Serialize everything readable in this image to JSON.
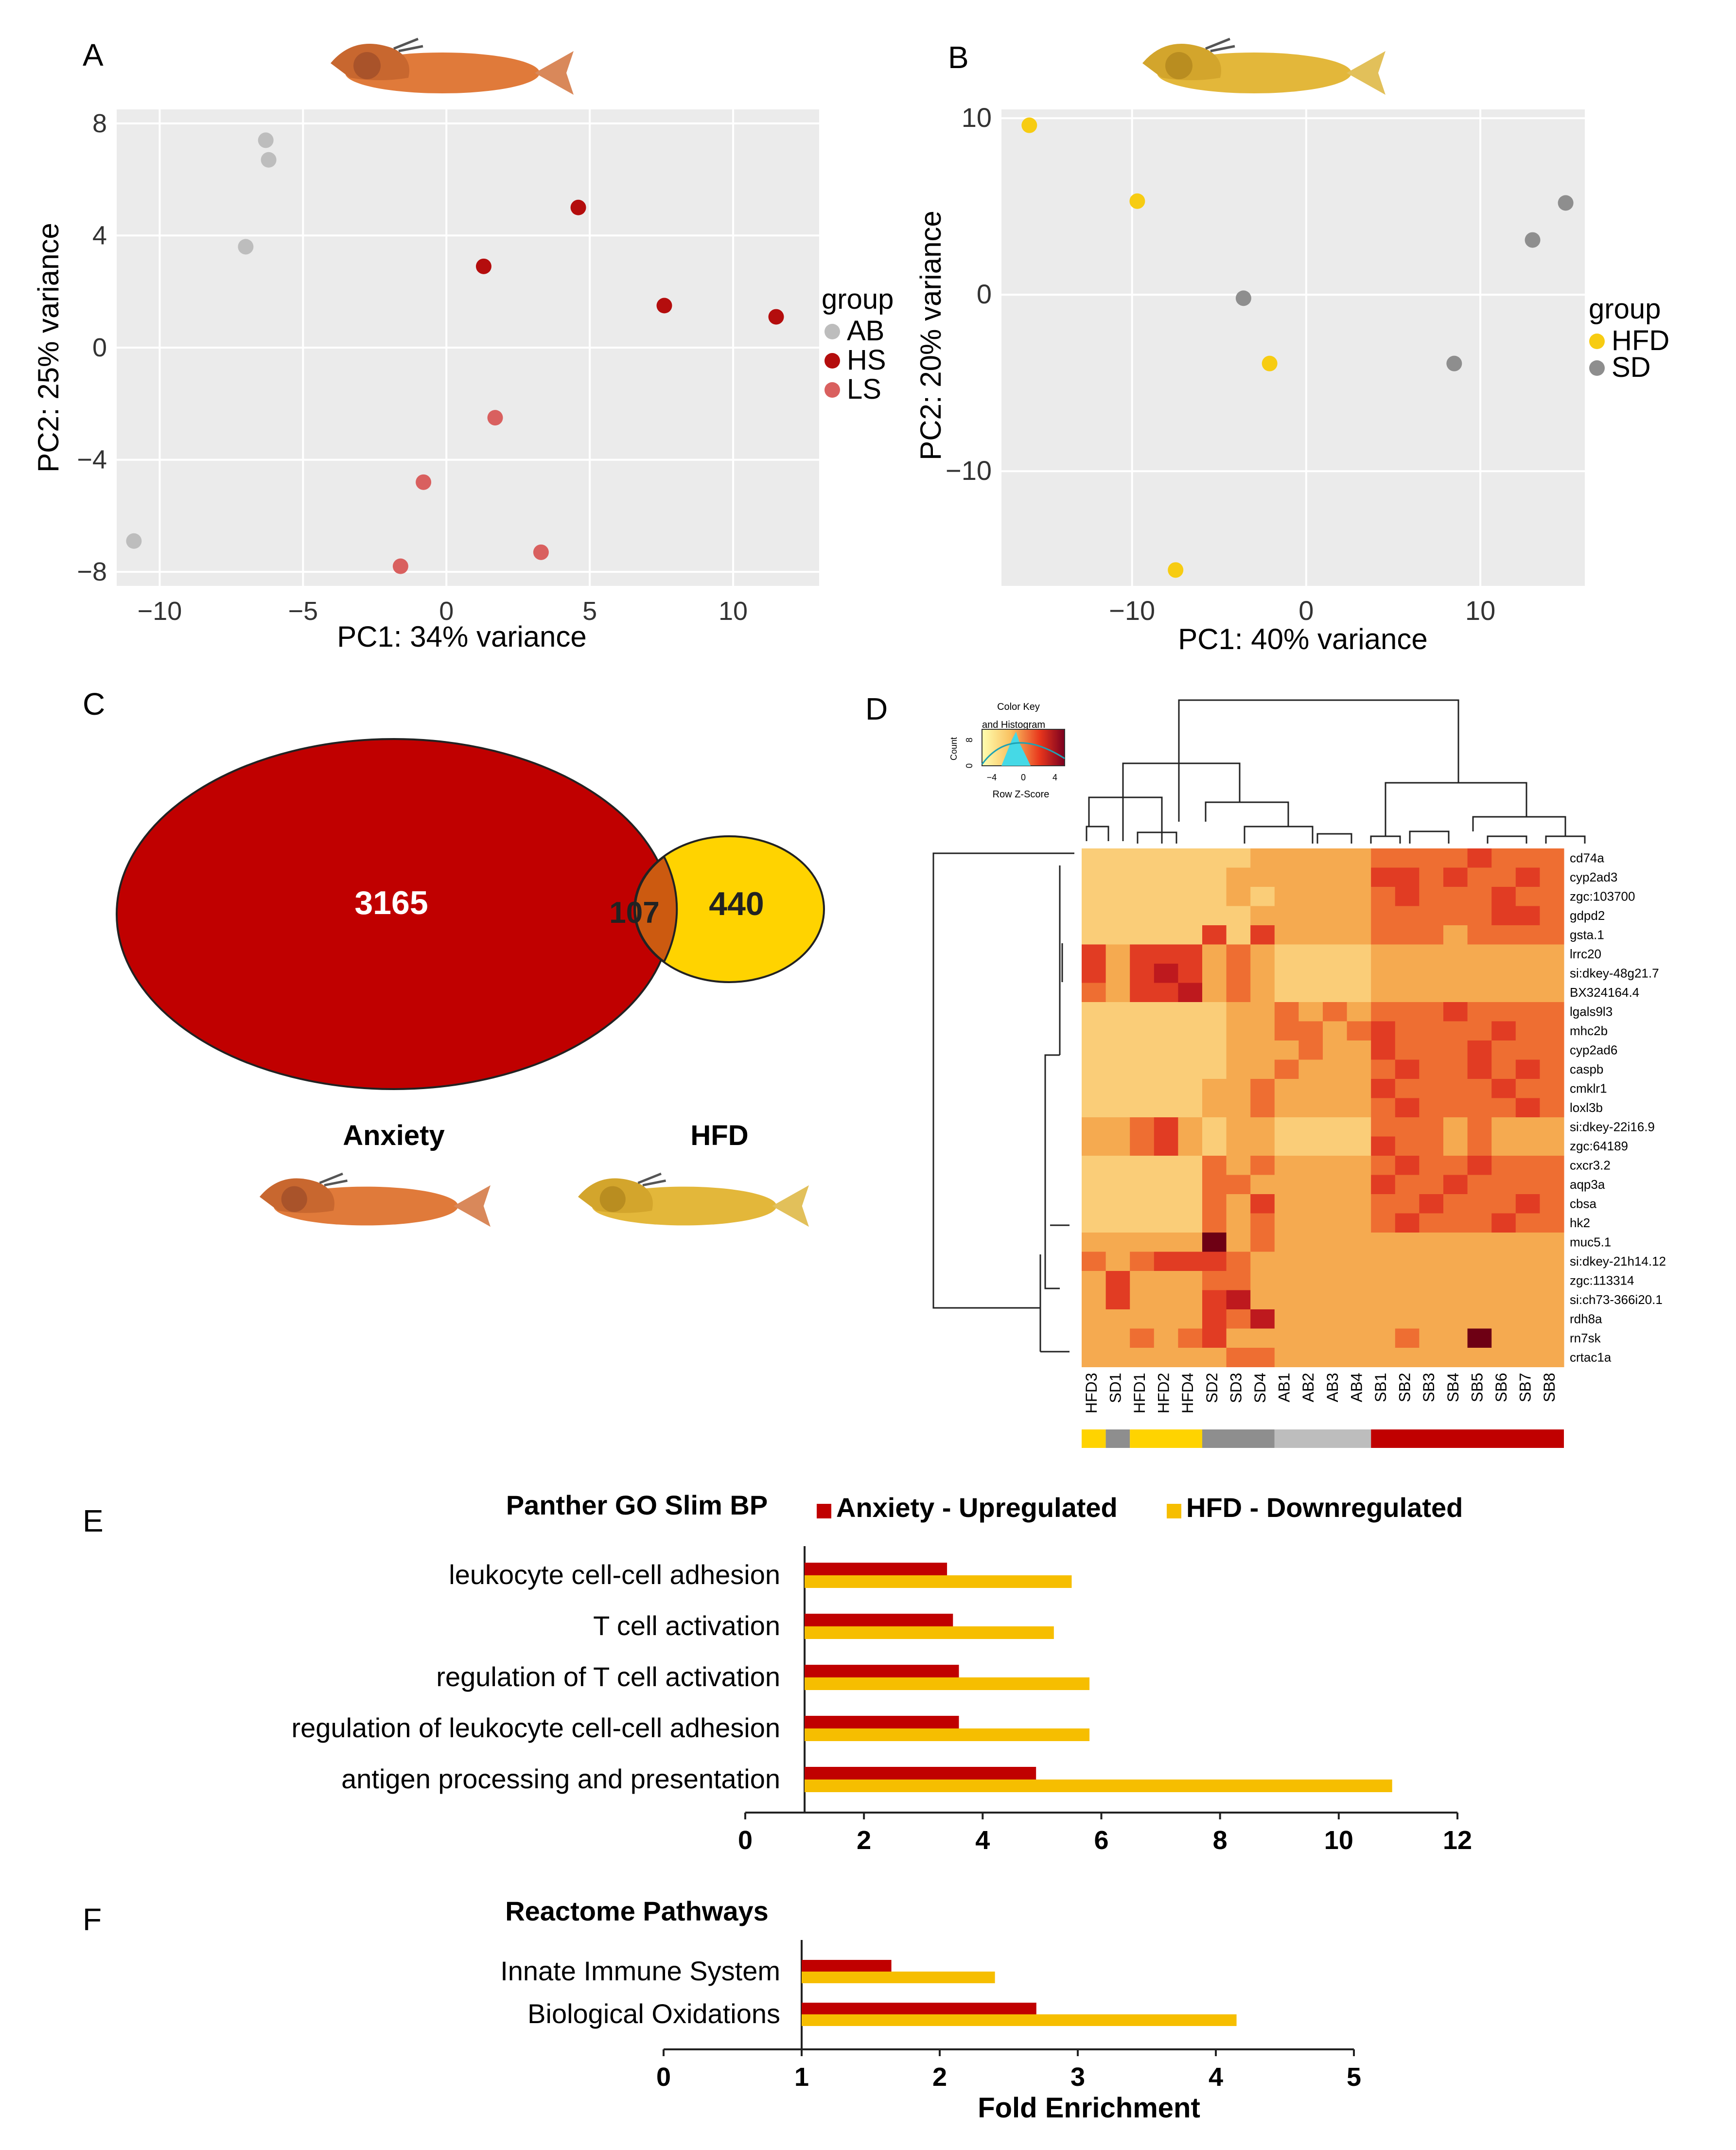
{
  "chart_data": [
    {
      "panel": "A",
      "type": "scatter",
      "xlabel": "PC1: 34% variance",
      "ylabel": "PC2: 25% variance",
      "xlim": [
        -11.5,
        13
      ],
      "ylim": [
        -8.5,
        8.5
      ],
      "xticks": [
        -10,
        -5,
        0,
        5,
        10
      ],
      "yticks": [
        8,
        4,
        0,
        -4,
        -8
      ],
      "xtick_labels": [
        "−10",
        "−5",
        "0",
        "5",
        "10"
      ],
      "ytick_labels": [
        "8",
        "4",
        "0",
        "−4",
        "−8"
      ],
      "legend_title": "group",
      "series": [
        {
          "name": "AB",
          "color": "#bdbdbd",
          "points": [
            [
              -6.3,
              7.4
            ],
            [
              -6.2,
              6.7
            ],
            [
              -7.0,
              3.6
            ],
            [
              -10.9,
              -6.9
            ]
          ]
        },
        {
          "name": "HS",
          "color": "#b40d0d",
          "points": [
            [
              4.6,
              5.0
            ],
            [
              1.3,
              2.9
            ],
            [
              7.6,
              1.5
            ],
            [
              11.5,
              1.1
            ]
          ]
        },
        {
          "name": "LS",
          "color": "#d9605f",
          "points": [
            [
              1.7,
              -2.5
            ],
            [
              -0.8,
              -4.8
            ],
            [
              -1.6,
              -7.8
            ],
            [
              3.3,
              -7.3
            ]
          ]
        }
      ]
    },
    {
      "panel": "B",
      "type": "scatter",
      "xlabel": "PC1: 40% variance",
      "ylabel": "PC2: 20% variance",
      "xlim": [
        -17.5,
        16
      ],
      "ylim": [
        -16.5,
        10.5
      ],
      "xticks": [
        -10,
        0,
        10
      ],
      "yticks": [
        10,
        0,
        -10
      ],
      "xtick_labels": [
        "−10",
        "0",
        "10"
      ],
      "ytick_labels": [
        "10",
        "0",
        "−10"
      ],
      "legend_title": "group",
      "series": [
        {
          "name": "HFD",
          "color": "#f7cc12",
          "points": [
            [
              -15.9,
              9.6
            ],
            [
              -9.7,
              5.3
            ],
            [
              -2.1,
              -3.9
            ],
            [
              -7.5,
              -15.6
            ]
          ]
        },
        {
          "name": "SD",
          "color": "#8e8e8e",
          "points": [
            [
              -3.6,
              -0.2
            ],
            [
              8.5,
              -3.9
            ],
            [
              13.0,
              3.1
            ],
            [
              14.9,
              5.2
            ]
          ]
        }
      ]
    },
    {
      "panel": "C",
      "type": "venn",
      "sets": [
        {
          "name": "Anxiety",
          "value": 3165,
          "color": "#c00000"
        },
        {
          "name": "HFD",
          "value": 440,
          "color": "#ffd300"
        }
      ],
      "intersection": 107,
      "intersection_color": "#cc5a10"
    },
    {
      "panel": "D",
      "type": "heatmap",
      "colorkey": {
        "title": "Color Key",
        "subtitle": "and Histogram",
        "count_label": "Count",
        "count_ticks": [
          "0",
          "8"
        ],
        "xlabel": "Row Z-Score",
        "xticks": [
          "−4",
          "0",
          "4"
        ]
      },
      "columns": [
        "HFD3",
        "SD1",
        "HFD1",
        "HFD2",
        "HFD4",
        "SD2",
        "SD3",
        "SD4",
        "AB1",
        "AB2",
        "AB3",
        "AB4",
        "SB1",
        "SB2",
        "SB3",
        "SB4",
        "SB5",
        "SB6",
        "SB7",
        "SB8"
      ],
      "rows": [
        "cd74a",
        "cyp2ad3",
        "zgc:103700",
        "gdpd2",
        "gsta.1",
        "lrrc20",
        "si:dkey-48g21.7",
        "BX324164.4",
        "lgals9l3",
        "mhc2b",
        "cyp2ad6",
        "caspb",
        "cmklr1",
        "loxl3b",
        "si:dkey-22i16.9",
        "zgc:64189",
        "cxcr3.2",
        "aqp3a",
        "cbsa",
        "hk2",
        "muc5.1",
        "si:dkey-21h14.12",
        "zgc:113314",
        "si:ch73-366i20.1",
        "rdh8a",
        "rn7sk",
        "crtac1a"
      ],
      "group_bar": [
        {
          "label": "HFD",
          "color": "#ffd300",
          "span": 1
        },
        {
          "label": "SD",
          "color": "#8e8e8e",
          "span": 1
        },
        {
          "label": "HFD",
          "color": "#ffd300",
          "span": 3
        },
        {
          "label": "SD",
          "color": "#8e8e8e",
          "span": 3
        },
        {
          "label": "AB",
          "color": "#bdbdbd",
          "span": 4
        },
        {
          "label": "SB",
          "color": "#c00000",
          "span": 8
        }
      ],
      "values": [
        [
          -1,
          -1,
          -1,
          -1,
          -1,
          -1,
          -1,
          0,
          0,
          0,
          0,
          0,
          1,
          1,
          1,
          1,
          2,
          1,
          1,
          1
        ],
        [
          -1,
          -1,
          -1,
          -1,
          -1,
          -1,
          0,
          0,
          0,
          0,
          0,
          0,
          2,
          2,
          1,
          2,
          1,
          1,
          2,
          1
        ],
        [
          -1,
          -1,
          -1,
          -1,
          -1,
          -1,
          0,
          -1,
          0,
          0,
          0,
          0,
          1,
          2,
          1,
          1,
          1,
          2,
          1,
          1
        ],
        [
          -1,
          -1,
          -1,
          -1,
          -1,
          -1,
          -1,
          0,
          0,
          0,
          0,
          0,
          1,
          1,
          1,
          1,
          1,
          2,
          2,
          1
        ],
        [
          -1,
          -1,
          -1,
          -1,
          -1,
          2,
          -1,
          2,
          0,
          0,
          0,
          0,
          1,
          1,
          1,
          0,
          1,
          1,
          1,
          1
        ],
        [
          2,
          0,
          2,
          2,
          2,
          0,
          1,
          0,
          -1,
          -1,
          -1,
          -1,
          0,
          0,
          0,
          0,
          0,
          0,
          0,
          0
        ],
        [
          2,
          0,
          2,
          3,
          2,
          0,
          1,
          0,
          -1,
          -1,
          -1,
          -1,
          0,
          0,
          0,
          0,
          0,
          0,
          0,
          0
        ],
        [
          1,
          0,
          2,
          2,
          3,
          0,
          1,
          0,
          -1,
          -1,
          -1,
          -1,
          0,
          0,
          0,
          0,
          0,
          0,
          0,
          0
        ],
        [
          -1,
          -1,
          -1,
          -1,
          -1,
          -1,
          0,
          0,
          1,
          0,
          1,
          0,
          1,
          1,
          1,
          2,
          1,
          1,
          1,
          1
        ],
        [
          -1,
          -1,
          -1,
          -1,
          -1,
          -1,
          0,
          0,
          1,
          1,
          0,
          1,
          2,
          1,
          1,
          1,
          1,
          2,
          1,
          1
        ],
        [
          -1,
          -1,
          -1,
          -1,
          -1,
          -1,
          0,
          0,
          0,
          1,
          0,
          0,
          2,
          1,
          1,
          1,
          2,
          1,
          1,
          1
        ],
        [
          -1,
          -1,
          -1,
          -1,
          -1,
          -1,
          0,
          0,
          1,
          0,
          0,
          0,
          1,
          2,
          1,
          1,
          2,
          1,
          2,
          1
        ],
        [
          -1,
          -1,
          -1,
          -1,
          -1,
          0,
          0,
          1,
          0,
          0,
          0,
          0,
          2,
          1,
          1,
          1,
          1,
          2,
          1,
          1
        ],
        [
          -1,
          -1,
          -1,
          -1,
          -1,
          0,
          0,
          1,
          0,
          0,
          0,
          0,
          1,
          2,
          1,
          1,
          1,
          1,
          2,
          1
        ],
        [
          0,
          0,
          1,
          2,
          0,
          -1,
          0,
          0,
          -1,
          -1,
          -1,
          -1,
          1,
          1,
          1,
          0,
          1,
          0,
          0,
          0
        ],
        [
          0,
          0,
          1,
          2,
          0,
          -1,
          0,
          0,
          -1,
          -1,
          -1,
          -1,
          2,
          1,
          1,
          0,
          1,
          0,
          0,
          0
        ],
        [
          -1,
          -1,
          -1,
          -1,
          -1,
          1,
          0,
          1,
          0,
          0,
          0,
          0,
          1,
          2,
          1,
          1,
          2,
          1,
          1,
          1
        ],
        [
          -1,
          -1,
          -1,
          -1,
          -1,
          1,
          1,
          0,
          0,
          0,
          0,
          0,
          2,
          1,
          1,
          2,
          1,
          1,
          1,
          1
        ],
        [
          -1,
          -1,
          -1,
          -1,
          -1,
          1,
          0,
          2,
          0,
          0,
          0,
          0,
          1,
          1,
          2,
          1,
          1,
          1,
          2,
          1
        ],
        [
          -1,
          -1,
          -1,
          -1,
          -1,
          1,
          0,
          1,
          0,
          0,
          0,
          0,
          1,
          2,
          1,
          1,
          1,
          2,
          1,
          1
        ],
        [
          0,
          0,
          0,
          0,
          0,
          4,
          0,
          1,
          0,
          0,
          0,
          0,
          0,
          0,
          0,
          0,
          0,
          0,
          0,
          0
        ],
        [
          1,
          0,
          1,
          2,
          2,
          2,
          1,
          0,
          0,
          0,
          0,
          0,
          0,
          0,
          0,
          0,
          0,
          0,
          0,
          0
        ],
        [
          0,
          2,
          0,
          0,
          0,
          1,
          1,
          0,
          0,
          0,
          0,
          0,
          0,
          0,
          0,
          0,
          0,
          0,
          0,
          0
        ],
        [
          0,
          2,
          0,
          0,
          0,
          2,
          3,
          0,
          0,
          0,
          0,
          0,
          0,
          0,
          0,
          0,
          0,
          0,
          0,
          0
        ],
        [
          0,
          0,
          0,
          0,
          0,
          2,
          1,
          3,
          0,
          0,
          0,
          0,
          0,
          0,
          0,
          0,
          0,
          0,
          0,
          0
        ],
        [
          0,
          0,
          1,
          0,
          1,
          2,
          0,
          0,
          0,
          0,
          0,
          0,
          0,
          1,
          0,
          0,
          4,
          0,
          0,
          0
        ],
        [
          0,
          0,
          0,
          0,
          0,
          0,
          1,
          1,
          0,
          0,
          0,
          0,
          0,
          0,
          0,
          0,
          0,
          0,
          0,
          0
        ]
      ]
    },
    {
      "panel": "E",
      "type": "bar",
      "orientation": "horizontal",
      "title": "Panther GO Slim BP",
      "categories": [
        "leukocyte cell-cell adhesion",
        "T cell activation",
        "regulation of T cell activation",
        "regulation of leukocyte cell-cell adhesion",
        "antigen processing and presentation"
      ],
      "series": [
        {
          "name": "Anxiety - Upregulated",
          "color": "#c00000",
          "values": [
            3.4,
            3.5,
            3.6,
            3.6,
            4.9
          ]
        },
        {
          "name": "HFD - Downregulated",
          "color": "#f6be00",
          "values": [
            5.5,
            5.2,
            5.8,
            5.8,
            10.9
          ]
        }
      ],
      "xlim": [
        0,
        12
      ],
      "xticks": [
        0,
        2,
        4,
        6,
        8,
        10,
        12
      ],
      "baseline": 1
    },
    {
      "panel": "F",
      "type": "bar",
      "orientation": "horizontal",
      "title": "Reactome Pathways",
      "categories": [
        "Innate Immune System",
        "Biological Oxidations"
      ],
      "series": [
        {
          "name": "Anxiety - Upregulated",
          "color": "#c00000",
          "values": [
            1.65,
            2.7
          ]
        },
        {
          "name": "HFD - Downregulated",
          "color": "#f6be00",
          "values": [
            2.4,
            4.15
          ]
        }
      ],
      "xlim": [
        0,
        5
      ],
      "xticks": [
        0,
        1,
        2,
        3,
        4,
        5
      ],
      "baseline": 1,
      "xlabel": "Fold Enrichment"
    }
  ]
}
